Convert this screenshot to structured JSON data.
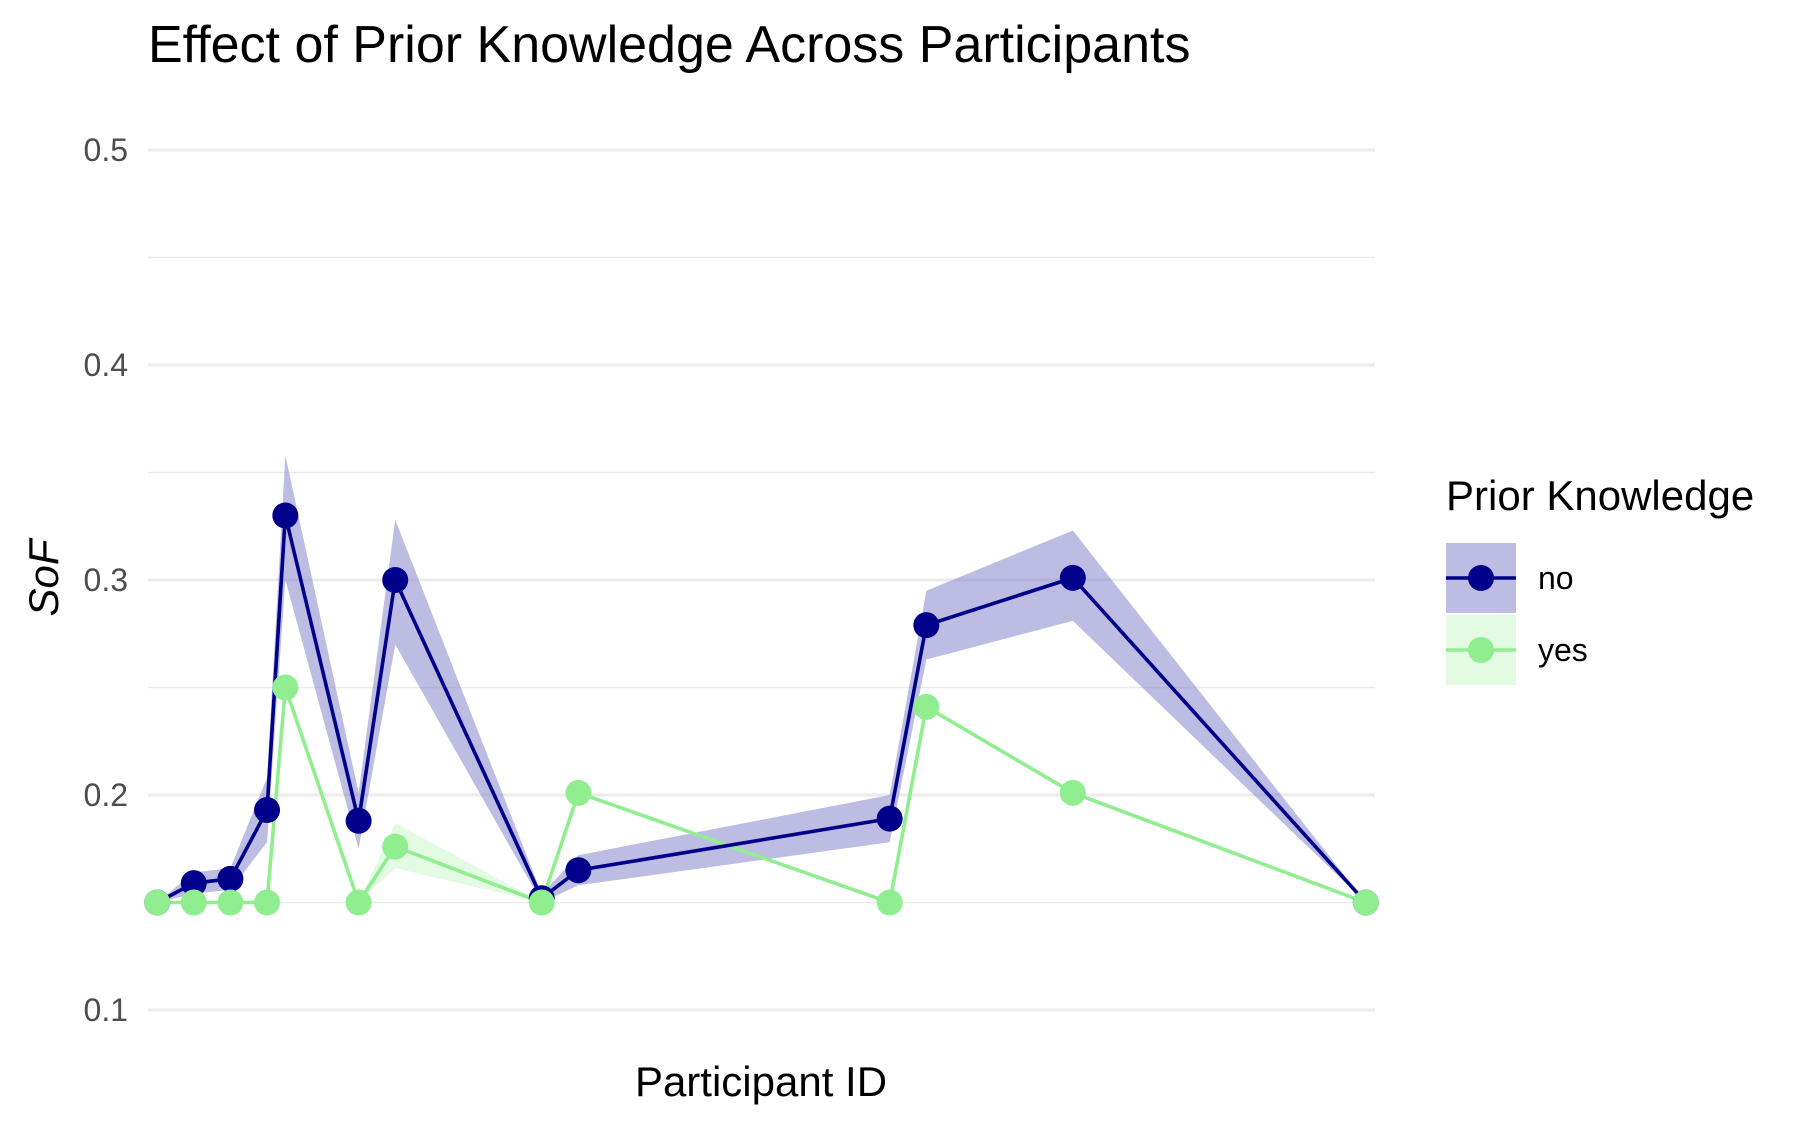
{
  "chart_data": {
    "type": "line",
    "title": "Effect of Prior Knowledge Across Participants",
    "xlabel": "Participant ID",
    "ylabel": "SoF",
    "ylim": [
      0.1,
      0.5
    ],
    "yticks": [
      "0.1",
      "0.2",
      "0.3",
      "0.4",
      "0.5"
    ],
    "grid": true,
    "x_ticks_labeled": false,
    "legend": {
      "title": "Prior Knowledge",
      "position": "right",
      "entries": [
        "no",
        "yes"
      ]
    },
    "x": [
      1,
      2,
      3,
      4,
      4.5,
      6.5,
      7.5,
      11.5,
      12.5,
      21,
      22,
      26,
      34
    ],
    "series": [
      {
        "name": "no",
        "color": "#00008B",
        "band_color": "#7B7BC8",
        "values": [
          0.15,
          0.159,
          0.161,
          0.193,
          0.33,
          0.188,
          0.3,
          0.152,
          0.165,
          0.189,
          0.279,
          0.301,
          0.15
        ],
        "lower": [
          0.15,
          0.154,
          0.156,
          0.178,
          0.3,
          0.175,
          0.27,
          0.15,
          0.158,
          0.178,
          0.263,
          0.281,
          0.15
        ],
        "upper": [
          0.15,
          0.164,
          0.166,
          0.208,
          0.358,
          0.201,
          0.328,
          0.154,
          0.172,
          0.2,
          0.295,
          0.323,
          0.15
        ]
      },
      {
        "name": "yes",
        "color": "#90EE90",
        "band_color": "#C8F5C8",
        "values": [
          0.15,
          0.15,
          0.15,
          0.15,
          0.25,
          0.15,
          0.176,
          0.15,
          0.201,
          0.15,
          0.241,
          0.201,
          0.15
        ],
        "lower": [
          0.15,
          0.15,
          0.15,
          0.15,
          0.25,
          0.15,
          0.166,
          0.15,
          0.201,
          0.15,
          0.241,
          0.201,
          0.15
        ],
        "upper": [
          0.15,
          0.15,
          0.15,
          0.15,
          0.25,
          0.15,
          0.187,
          0.15,
          0.201,
          0.15,
          0.241,
          0.201,
          0.15
        ]
      }
    ]
  }
}
